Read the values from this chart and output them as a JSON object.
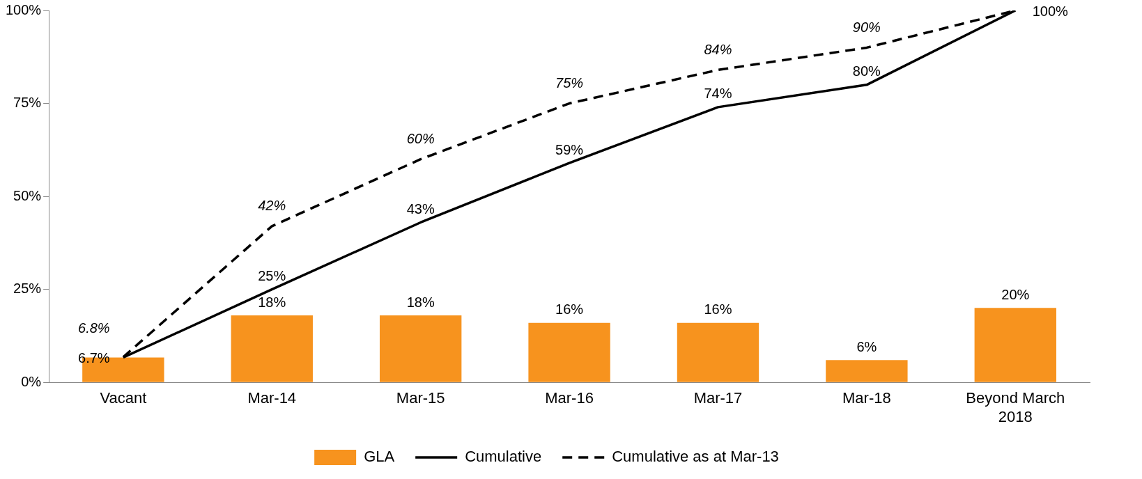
{
  "chart_data": {
    "type": "bar",
    "categories": [
      "Vacant",
      "Mar-14",
      "Mar-15",
      "Mar-16",
      "Mar-17",
      "Mar-18",
      "Beyond March 2018"
    ],
    "ylim": [
      0,
      100
    ],
    "yticks": [
      {
        "value": 0,
        "label": "0%"
      },
      {
        "value": 25,
        "label": "25%"
      },
      {
        "value": 50,
        "label": "50%"
      },
      {
        "value": 75,
        "label": "75%"
      },
      {
        "value": 100,
        "label": "100%"
      }
    ],
    "grid": false,
    "legend": "bottom",
    "data_labels": true,
    "series": [
      {
        "name": "GLA",
        "color": "#f7931e",
        "values": [
          6.7,
          18,
          18,
          16,
          16,
          6,
          20
        ],
        "value_labels": [
          null,
          "18%",
          "18%",
          "16%",
          "16%",
          "6%",
          "20%"
        ]
      },
      {
        "name": "Cumulative",
        "type": "line",
        "color": "#000000",
        "line_style": "solid",
        "values": [
          6.7,
          25,
          43,
          59,
          74,
          80,
          100
        ],
        "value_labels": [
          "6.7%",
          "25%",
          "43%",
          "59%",
          "74%",
          "80%",
          "100%"
        ]
      },
      {
        "name": "Cumulative as at Mar-13",
        "type": "line",
        "color": "#000000",
        "line_style": "dashed",
        "values": [
          6.8,
          42,
          60,
          75,
          84,
          90,
          100
        ],
        "value_labels": [
          "6.8%",
          "42%",
          "60%",
          "75%",
          "84%",
          "90%",
          null
        ]
      }
    ]
  }
}
